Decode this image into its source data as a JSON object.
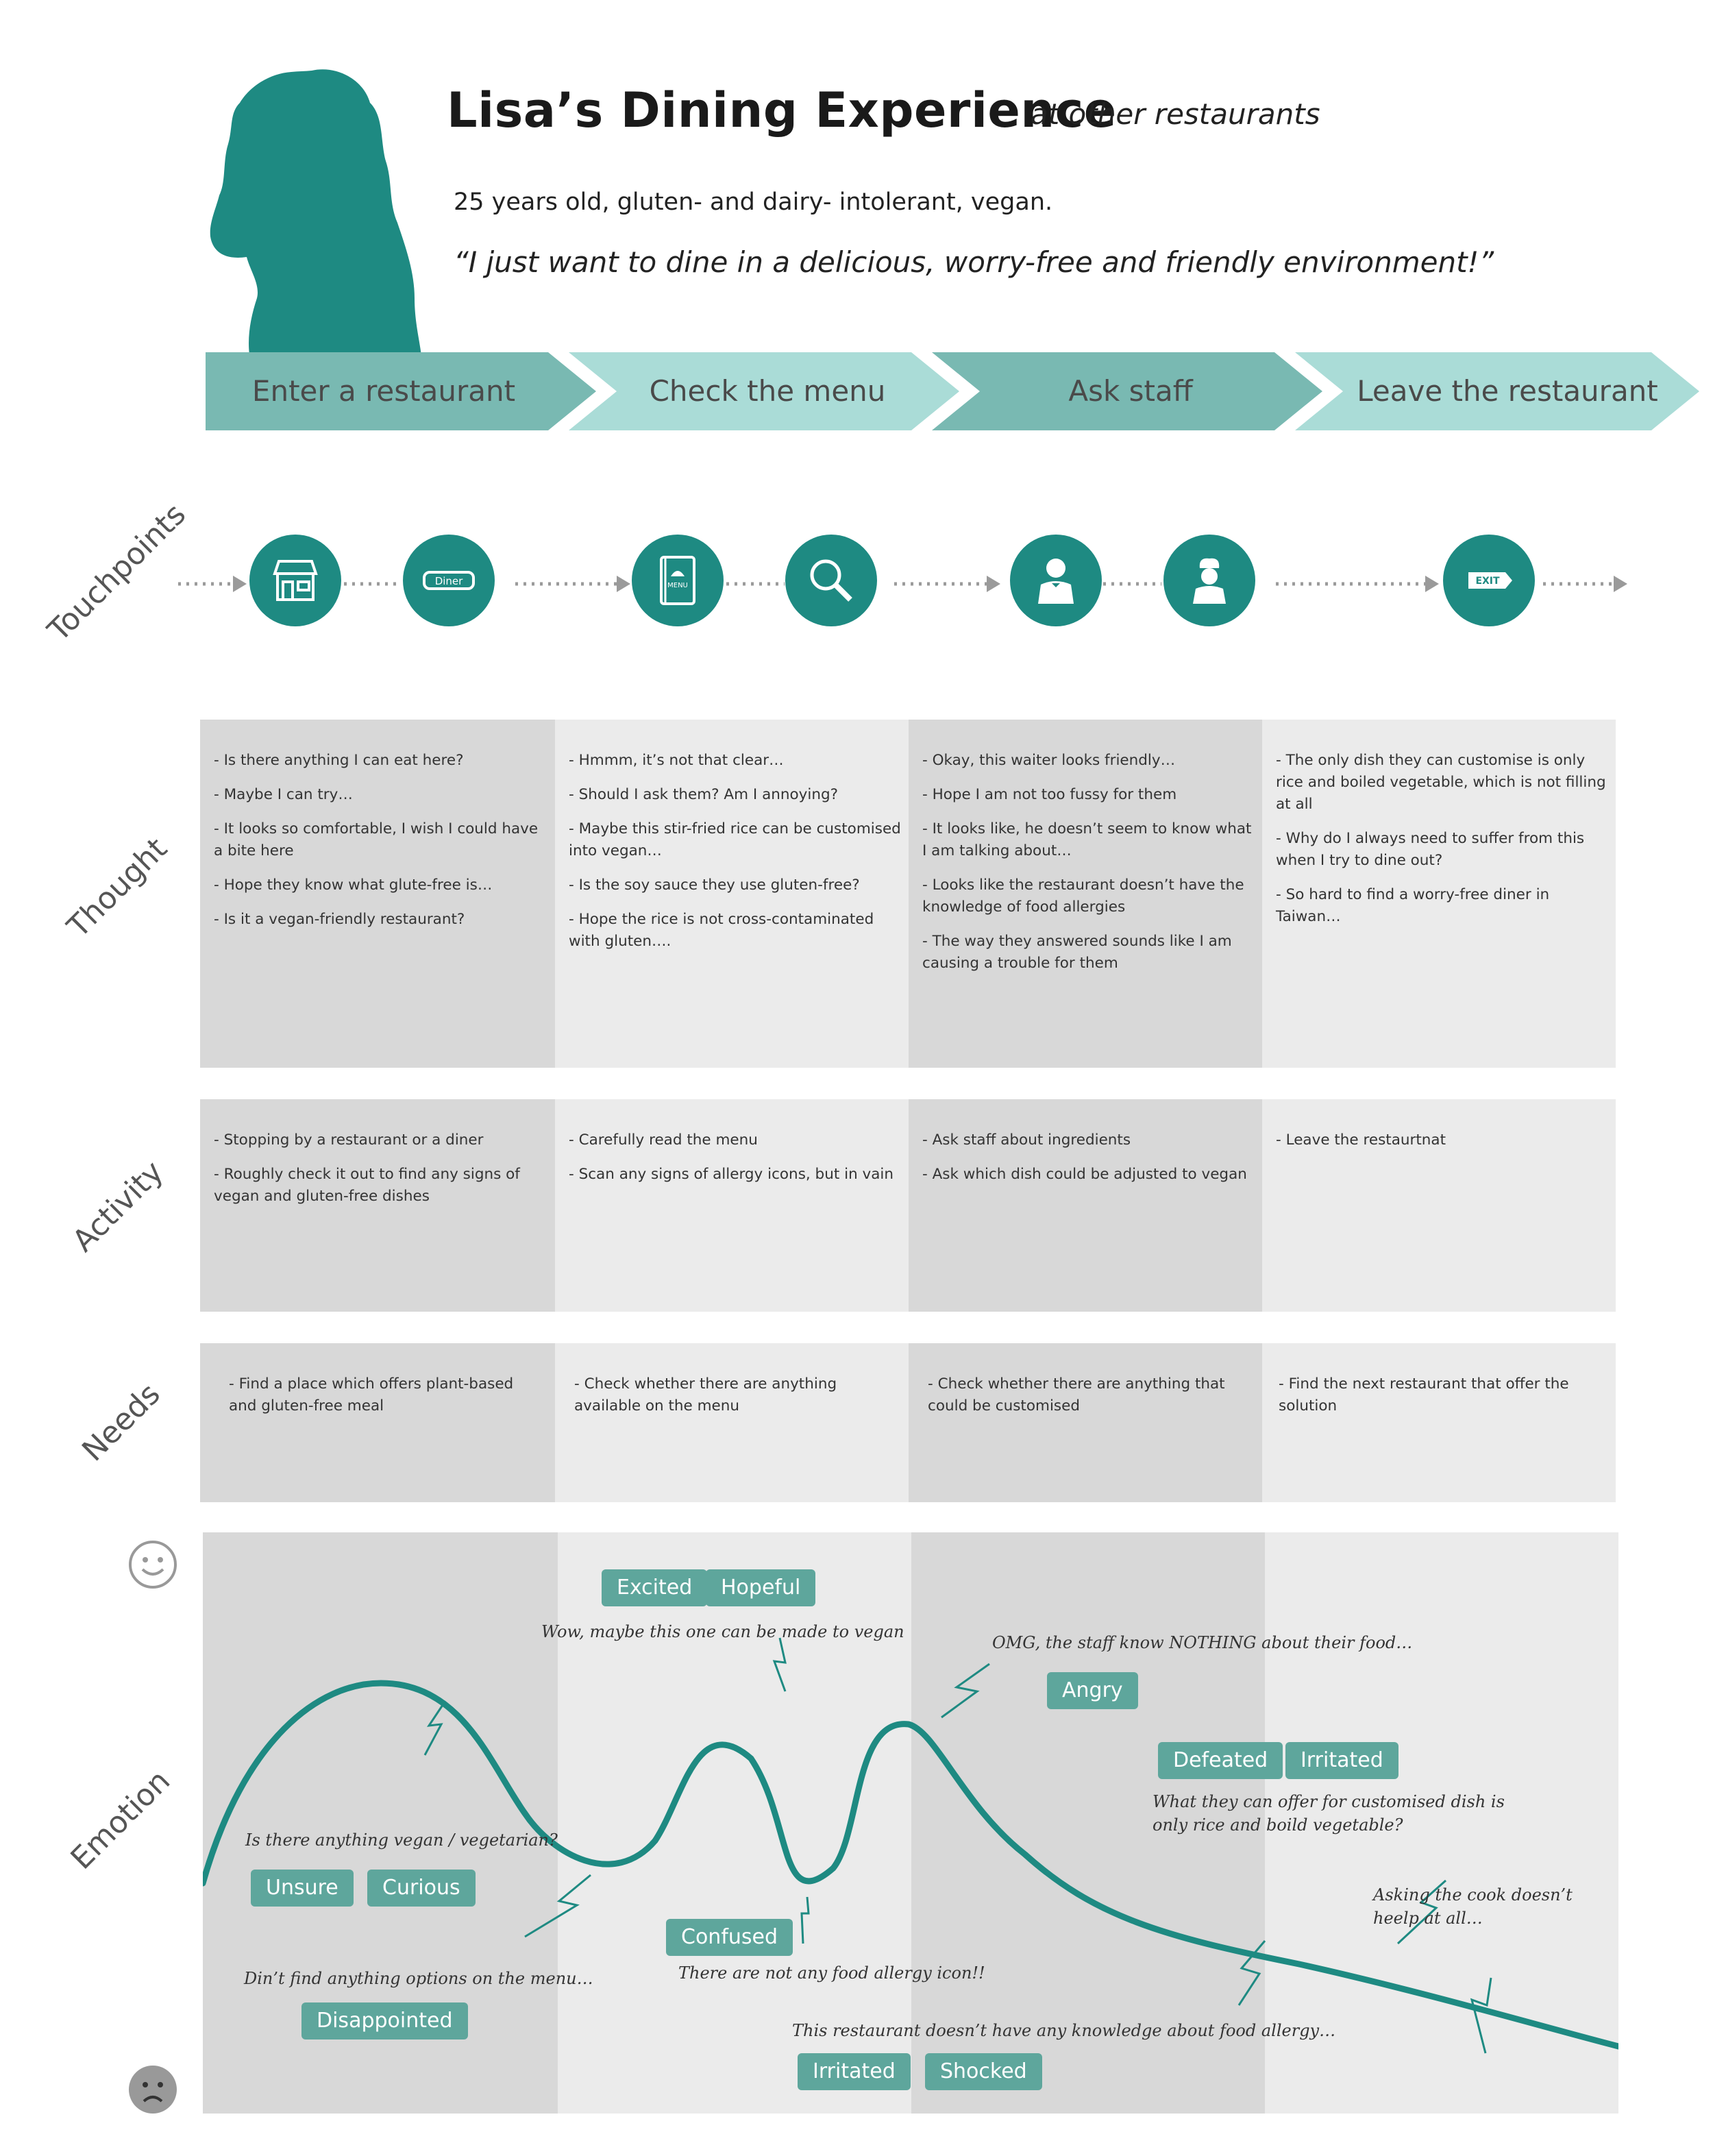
{
  "header": {
    "title": "Lisa’s Dining Experience",
    "subtitle": "at other restaurants",
    "description": "25 years old, gluten- and dairy- intolerant, vegan.",
    "quote": "“I just want to dine in a delicious, worry-free and friendly environment!”"
  },
  "colors": {
    "primary": "#1e8a82",
    "stage_dark": "#79b9b2",
    "stage_light": "#aadcd7",
    "tag": "#5ea69c"
  },
  "stages": [
    {
      "label": "Enter a restaurant"
    },
    {
      "label": "Check the menu"
    },
    {
      "label": "Ask staff"
    },
    {
      "label": "Leave the restaurant"
    }
  ],
  "rows": {
    "touchpoints": "Touchpoints",
    "thought": "Thought",
    "activity": "Activity",
    "needs": "Needs",
    "emotion": "Emotion"
  },
  "touchpoints": [
    {
      "icon": "storefront-icon"
    },
    {
      "icon": "diner-sign-icon",
      "label": "Diner"
    },
    {
      "icon": "menu-book-icon",
      "label": "MENU"
    },
    {
      "icon": "magnifier-icon"
    },
    {
      "icon": "waiter-icon"
    },
    {
      "icon": "chef-icon"
    },
    {
      "icon": "exit-sign-icon",
      "label": "EXIT"
    }
  ],
  "thought": [
    [
      "- Is there anything I can eat here?",
      "- Maybe I can try…",
      "- It looks so comfortable, I wish I could have a bite here",
      "- Hope they know what glute-free is…",
      "- Is it a vegan-friendly restaurant?"
    ],
    [
      "- Hmmm, it’s not that clear…",
      "- Should I ask them? Am I annoying?",
      "- Maybe this stir-fried rice can be customised into vegan…",
      "- Is the soy sauce they use gluten-free?",
      "- Hope the rice is not cross-contaminated with gluten…."
    ],
    [
      "- Okay, this waiter looks friendly…",
      "- Hope I am not too fussy for them",
      "- It looks like, he doesn’t seem to know what I am talking about…",
      "- Looks like the restaurant doesn’t have the knowledge of food allergies",
      "- The way they answered sounds like I am causing a trouble for them"
    ],
    [
      "- The only dish they can customise is only rice and boiled vegetable, which is not filling at all",
      "- Why do I always need to suffer from this when I try to dine out?",
      "- So hard to find a worry-free diner in Taiwan…"
    ]
  ],
  "activity": [
    [
      "- Stopping by a restaurant or a diner",
      "- Roughly check it out to find any signs of vegan and gluten-free dishes"
    ],
    [
      "- Carefully read the menu",
      "- Scan any signs of allergy icons, but in vain"
    ],
    [
      " - Ask staff about ingredients",
      " - Ask which dish could be adjusted to vegan"
    ],
    [
      "- Leave the restaurtnat"
    ]
  ],
  "needs": [
    [
      "- Find a place which offers plant-based and gluten-free meal"
    ],
    [
      "- Check whether there are anything available on the menu"
    ],
    [
      "- Check whether there are anything that could be customised"
    ],
    [
      "- Find the next restaurant that offer the solution"
    ]
  ],
  "emotion": {
    "tags": [
      "Excited",
      "Hopeful",
      "Angry",
      "Defeated",
      "Irritated",
      "Unsure",
      "Curious",
      "Confused",
      "Disappointed",
      "Irritated",
      "Shocked"
    ],
    "notes": [
      "Wow, maybe this one can be made to vegan",
      "OMG, the staff know NOTHING about their food…",
      "What they can offer for customised dish is only rice and boild vegetable?",
      "Is there anything vegan / vegetarian?",
      "Asking the cook doesn’t heelp at all…",
      "There are not any food allergy icon!!",
      "Din’t find anything options on the menu…",
      "This restaurant doesn’t have any knowledge about food allergy…"
    ]
  }
}
